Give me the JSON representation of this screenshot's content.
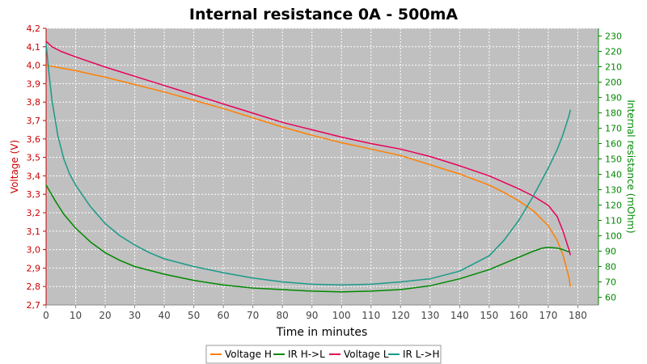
{
  "chart_data": {
    "type": "line",
    "title": "Internal resistance  0A - 500mA",
    "xlabel": "Time in minutes",
    "ylabel_left": "Voltage (V)",
    "ylabel_right": "Internal resistance (mOhm)",
    "xlim": [
      0,
      187
    ],
    "ylim_left": [
      2.7,
      4.2
    ],
    "ylim_right": [
      55,
      235
    ],
    "x_ticks": [
      0,
      10,
      20,
      30,
      40,
      50,
      60,
      70,
      80,
      90,
      100,
      110,
      120,
      130,
      140,
      150,
      160,
      170,
      180
    ],
    "y_left_ticks": [
      "2,7",
      "2,8",
      "2,9",
      "3,0",
      "3,1",
      "3,2",
      "3,3",
      "3,4",
      "3,5",
      "3,6",
      "3,7",
      "3,8",
      "3,9",
      "4,0",
      "4,1",
      "4,2"
    ],
    "y_right_ticks": [
      60,
      70,
      80,
      90,
      100,
      110,
      120,
      130,
      140,
      150,
      160,
      170,
      180,
      190,
      200,
      210,
      220,
      230
    ],
    "grid": true,
    "background": "#c0c0c0",
    "legend_position": "bottom",
    "series": [
      {
        "name": "Voltage H",
        "axis": "left",
        "color": "#ff8000",
        "points": [
          [
            0,
            4.0
          ],
          [
            10,
            3.97
          ],
          [
            20,
            3.935
          ],
          [
            30,
            3.895
          ],
          [
            40,
            3.855
          ],
          [
            50,
            3.81
          ],
          [
            60,
            3.765
          ],
          [
            70,
            3.715
          ],
          [
            80,
            3.665
          ],
          [
            90,
            3.62
          ],
          [
            100,
            3.58
          ],
          [
            110,
            3.545
          ],
          [
            120,
            3.51
          ],
          [
            130,
            3.46
          ],
          [
            140,
            3.41
          ],
          [
            150,
            3.35
          ],
          [
            155,
            3.31
          ],
          [
            160,
            3.265
          ],
          [
            165,
            3.21
          ],
          [
            170,
            3.13
          ],
          [
            173,
            3.05
          ],
          [
            175,
            2.97
          ],
          [
            177,
            2.85
          ],
          [
            177.5,
            2.8
          ]
        ]
      },
      {
        "name": "IR H->L",
        "axis": "right",
        "color": "#008800",
        "points": [
          [
            0,
            133
          ],
          [
            3,
            123
          ],
          [
            6,
            114
          ],
          [
            10,
            105
          ],
          [
            15,
            96
          ],
          [
            20,
            89
          ],
          [
            25,
            84
          ],
          [
            30,
            80
          ],
          [
            40,
            75
          ],
          [
            50,
            71
          ],
          [
            60,
            68
          ],
          [
            70,
            66
          ],
          [
            80,
            65
          ],
          [
            90,
            64
          ],
          [
            100,
            63.5
          ],
          [
            110,
            64
          ],
          [
            120,
            65
          ],
          [
            130,
            67.5
          ],
          [
            140,
            72
          ],
          [
            150,
            78
          ],
          [
            155,
            82
          ],
          [
            160,
            86
          ],
          [
            165,
            90
          ],
          [
            168,
            92
          ],
          [
            170,
            92.5
          ],
          [
            173,
            92
          ],
          [
            175,
            91
          ],
          [
            177,
            89.5
          ]
        ]
      },
      {
        "name": "Voltage L",
        "axis": "left",
        "color": "#e8005a",
        "points": [
          [
            0,
            4.13
          ],
          [
            2,
            4.1
          ],
          [
            5,
            4.075
          ],
          [
            10,
            4.045
          ],
          [
            20,
            3.99
          ],
          [
            30,
            3.94
          ],
          [
            40,
            3.89
          ],
          [
            50,
            3.84
          ],
          [
            60,
            3.79
          ],
          [
            70,
            3.74
          ],
          [
            80,
            3.69
          ],
          [
            90,
            3.65
          ],
          [
            100,
            3.61
          ],
          [
            110,
            3.575
          ],
          [
            120,
            3.545
          ],
          [
            130,
            3.505
          ],
          [
            140,
            3.455
          ],
          [
            150,
            3.4
          ],
          [
            160,
            3.33
          ],
          [
            165,
            3.29
          ],
          [
            170,
            3.24
          ],
          [
            173,
            3.18
          ],
          [
            175,
            3.1
          ],
          [
            177,
            3.0
          ],
          [
            177.5,
            2.97
          ]
        ]
      },
      {
        "name": "IR L->H",
        "axis": "right",
        "color": "#1a9a88",
        "points": [
          [
            0,
            225
          ],
          [
            1,
            205
          ],
          [
            2,
            188
          ],
          [
            4,
            165
          ],
          [
            6,
            150
          ],
          [
            8,
            140
          ],
          [
            10,
            133
          ],
          [
            15,
            119
          ],
          [
            20,
            108
          ],
          [
            25,
            100
          ],
          [
            30,
            94
          ],
          [
            35,
            89
          ],
          [
            40,
            85
          ],
          [
            50,
            80
          ],
          [
            60,
            76
          ],
          [
            70,
            72.5
          ],
          [
            80,
            70
          ],
          [
            90,
            68.5
          ],
          [
            100,
            68
          ],
          [
            110,
            68.5
          ],
          [
            120,
            70
          ],
          [
            130,
            72
          ],
          [
            140,
            77
          ],
          [
            150,
            87
          ],
          [
            155,
            97
          ],
          [
            160,
            110
          ],
          [
            165,
            126
          ],
          [
            170,
            144
          ],
          [
            173,
            156
          ],
          [
            175,
            166
          ],
          [
            177,
            178
          ],
          [
            177.5,
            182
          ]
        ]
      }
    ]
  }
}
